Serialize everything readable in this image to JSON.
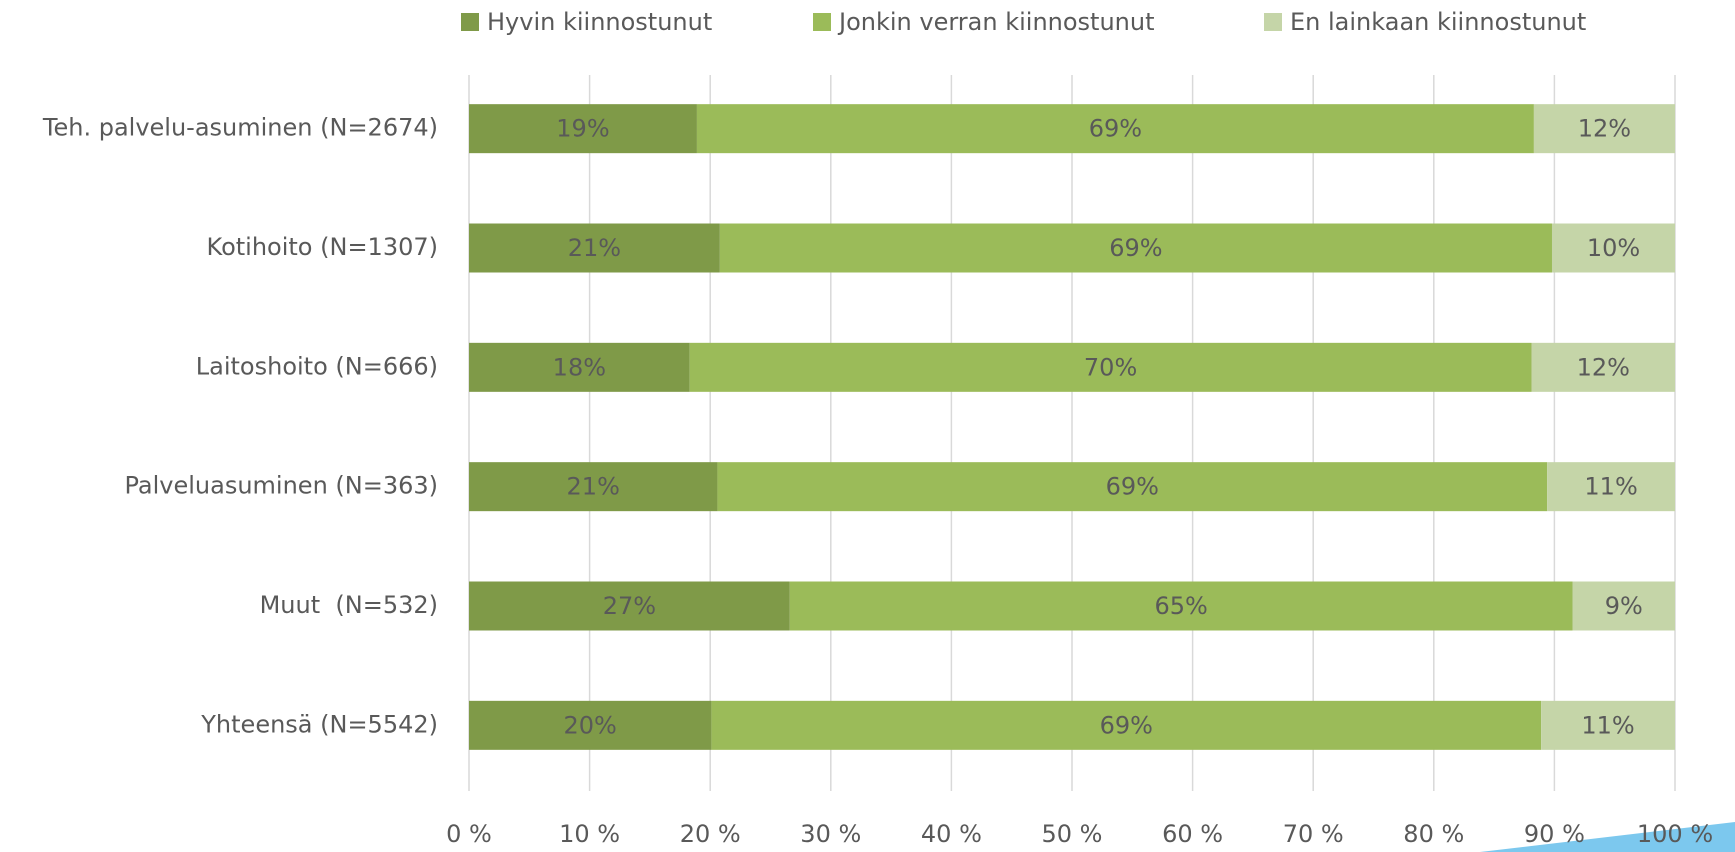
{
  "chart_data": {
    "type": "stacked_barh",
    "categories": [
      "Teh. palvelu-asuminen (N=2674)",
      "Kotihoito (N=1307)",
      "Laitoshoito (N=666)",
      "Palveluasuminen (N=363)",
      "Muut  (N=532)",
      "Yhteensä (N=5542)"
    ],
    "series": [
      {
        "name": "Hyvin kiinnostunut",
        "color": "#7f9a48",
        "values": [
          18.9,
          20.8,
          18.3,
          20.6,
          26.6,
          20.1
        ],
        "value_labels": [
          "19%",
          "21%",
          "18%",
          "21%",
          "27%",
          "20%"
        ]
      },
      {
        "name": "Jonkin verran kiinnostunut",
        "color": "#9bbb59",
        "values": [
          69.4,
          69.0,
          69.8,
          68.8,
          64.9,
          68.8
        ],
        "value_labels": [
          "69%",
          "69%",
          "70%",
          "69%",
          "65%",
          "69%"
        ]
      },
      {
        "name": "En lainkaan kiinnostunut",
        "color": "#c5d5a8",
        "values": [
          11.7,
          10.2,
          11.9,
          10.6,
          8.5,
          11.1
        ],
        "value_labels": [
          "12%",
          "10%",
          "12%",
          "11%",
          "9%",
          "11%"
        ]
      }
    ],
    "xlim": [
      0,
      100
    ],
    "xticks": [
      {
        "value": 0,
        "label": "0 %"
      },
      {
        "value": 10,
        "label": "10 %"
      },
      {
        "value": 20,
        "label": "20 %"
      },
      {
        "value": 30,
        "label": "30 %"
      },
      {
        "value": 40,
        "label": "40 %"
      },
      {
        "value": 50,
        "label": "50 %"
      },
      {
        "value": 60,
        "label": "60 %"
      },
      {
        "value": 70,
        "label": "70 %"
      },
      {
        "value": 80,
        "label": "80 %"
      },
      {
        "value": 90,
        "label": "90 %"
      },
      {
        "value": 100,
        "label": "100 %"
      }
    ],
    "grid": true,
    "legend": "top"
  }
}
